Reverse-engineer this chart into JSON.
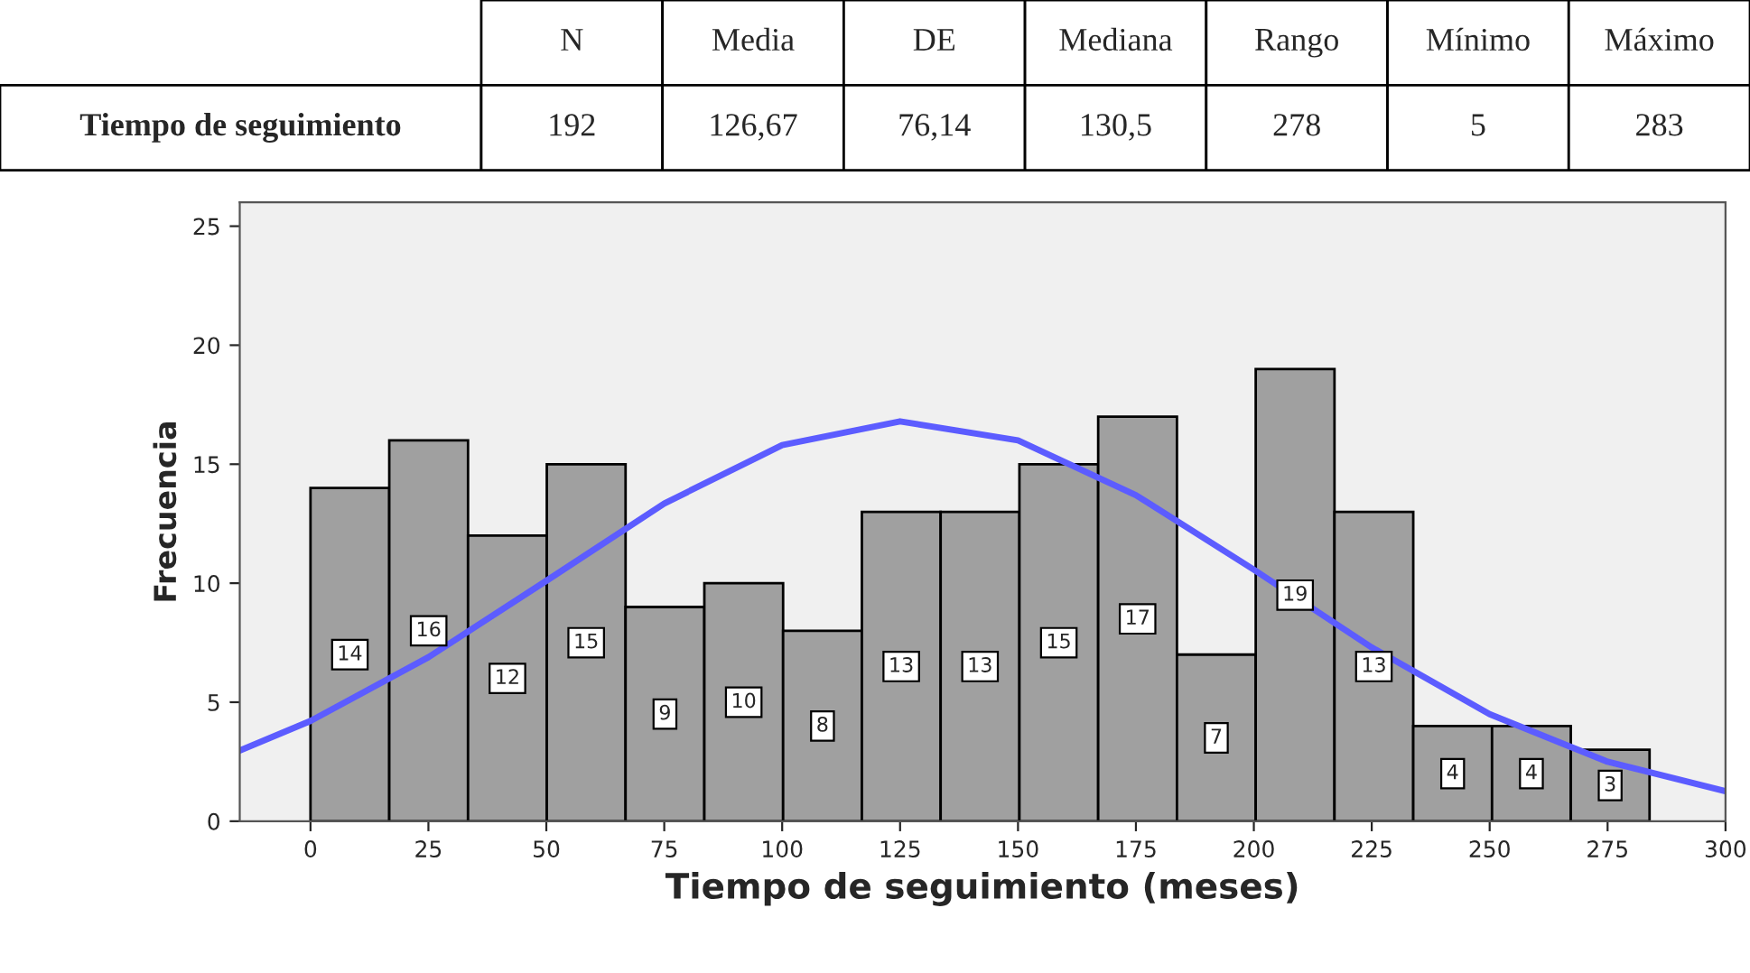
{
  "chart_data": {
    "type": "histogram",
    "xlabel": "Tiempo de seguimiento (meses)",
    "ylabel": "Frecuencia",
    "bins": [
      0,
      16.7,
      33.4,
      50.1,
      66.8,
      83.5,
      100.2,
      116.9,
      133.6,
      150.3,
      167.0,
      183.7,
      200.4,
      217.1,
      233.8,
      250.5,
      267.2,
      283.9
    ],
    "values": [
      14,
      16,
      12,
      15,
      9,
      10,
      8,
      13,
      13,
      15,
      17,
      7,
      19,
      13,
      4,
      4,
      3
    ],
    "color": "#a0a0a0",
    "value_labels": [
      "14",
      "16",
      "12",
      "15",
      "9",
      "10",
      "8",
      "13",
      "13",
      "15",
      "17",
      "7",
      "19",
      "13",
      "4",
      "4",
      "3"
    ],
    "series": [
      {
        "type": "line",
        "color": "#5c5cff",
        "x": [
          -15,
          0,
          25,
          50,
          75,
          100,
          125,
          150,
          175,
          200,
          225,
          250,
          275,
          300
        ],
        "values": [
          2.97,
          4.21,
          6.89,
          10.1,
          13.35,
          15.8,
          16.8,
          16.0,
          13.7,
          10.57,
          7.3,
          4.5,
          2.5,
          1.26
        ]
      }
    ],
    "xlim": [
      -15,
      300
    ],
    "ylim": [
      0,
      26
    ],
    "xticks": [
      0,
      25,
      50,
      75,
      100,
      125,
      150,
      175,
      200,
      225,
      250,
      275,
      300
    ],
    "yticks": [
      0,
      5,
      10,
      15,
      20,
      25
    ],
    "grid": false,
    "annotations": [
      "N",
      "Media",
      "DE",
      "Mediana",
      "Rango",
      "Mínimo",
      "Máximo",
      "Tiempo de seguimiento",
      "192",
      "126,67",
      "76,14",
      "130,5",
      "278",
      "5",
      "283"
    ]
  }
}
